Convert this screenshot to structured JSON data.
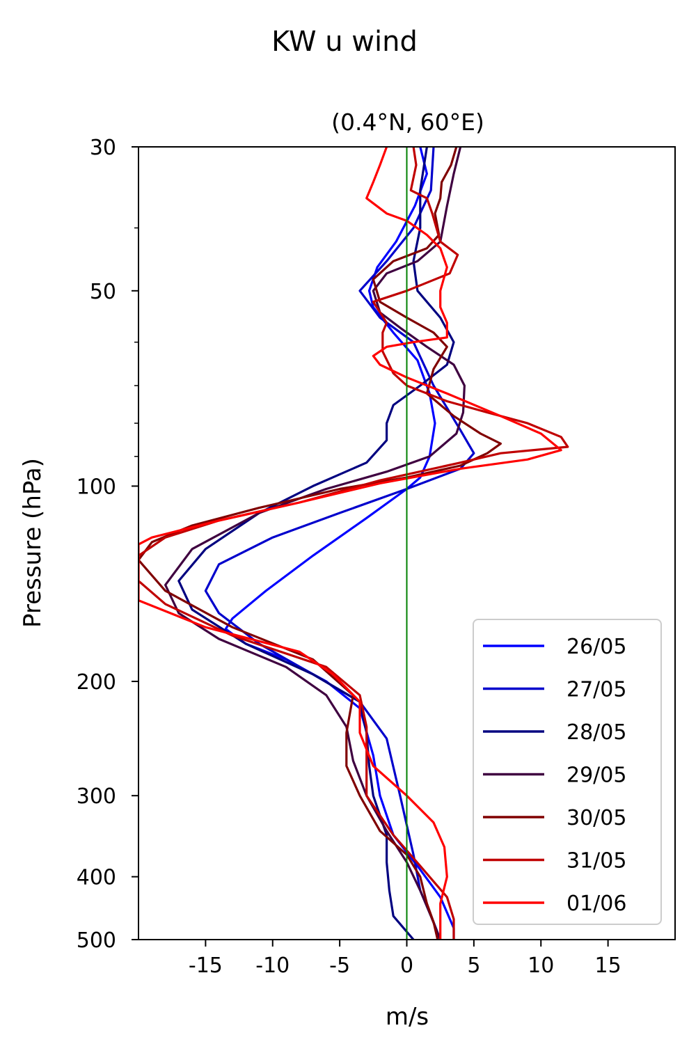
{
  "chart_data": {
    "type": "line",
    "title": "KW u wind",
    "subtitle": "(0.4°N, 60°E)",
    "xlabel": "m/s",
    "ylabel": "Pressure (hPa)",
    "xlim": [
      -20,
      20
    ],
    "ylim": [
      500,
      30
    ],
    "y_scale": "log",
    "grid": false,
    "legend_position": "lower-right",
    "xticks": [
      -15,
      -10,
      -5,
      0,
      5,
      10,
      15
    ],
    "xtick_labels": [
      "-15",
      "-10",
      "-5",
      "0",
      "5",
      "10",
      "15"
    ],
    "yticks": [
      30,
      50,
      100,
      200,
      300,
      400,
      500
    ],
    "ytick_labels": [
      "30",
      "50",
      "100",
      "200",
      "300",
      "400",
      "500"
    ],
    "reference_line": {
      "x": 0,
      "color": "#008000"
    },
    "series": [
      {
        "name": "26/05",
        "color": "#0000ff",
        "points": [
          [
            1.0,
            30
          ],
          [
            1.5,
            33
          ],
          [
            0.6,
            37
          ],
          [
            -0.8,
            42
          ],
          [
            -2.2,
            46
          ],
          [
            -2.8,
            50
          ],
          [
            -2.5,
            53
          ],
          [
            -1.0,
            58
          ],
          [
            0.8,
            64
          ],
          [
            1.7,
            72
          ],
          [
            2.1,
            80
          ],
          [
            1.7,
            90
          ],
          [
            1.0,
            97
          ],
          [
            0,
            101
          ],
          [
            -3,
            112
          ],
          [
            -7,
            128
          ],
          [
            -10.5,
            145
          ],
          [
            -13,
            160
          ],
          [
            -13.5,
            166
          ],
          [
            -12,
            175
          ],
          [
            -9,
            185
          ],
          [
            -6,
            200
          ],
          [
            -3.5,
            220
          ],
          [
            -2.5,
            260
          ],
          [
            -2,
            300
          ],
          [
            -1,
            345
          ],
          [
            1,
            390
          ],
          [
            2.5,
            430
          ],
          [
            3.5,
            480
          ],
          [
            3.5,
            500
          ]
        ]
      },
      {
        "name": "27/05",
        "color": "#0000cc",
        "points": [
          [
            2.0,
            30
          ],
          [
            1.8,
            35
          ],
          [
            0.5,
            40
          ],
          [
            -1.5,
            45
          ],
          [
            -3.5,
            50
          ],
          [
            -2.0,
            55
          ],
          [
            0.5,
            60
          ],
          [
            2.0,
            70
          ],
          [
            4.0,
            82
          ],
          [
            5.0,
            89
          ],
          [
            4.0,
            94
          ],
          [
            0,
            101
          ],
          [
            -5,
            110
          ],
          [
            -10,
            120
          ],
          [
            -14,
            132
          ],
          [
            -15,
            145
          ],
          [
            -14,
            157
          ],
          [
            -11,
            175
          ],
          [
            -7,
            195
          ],
          [
            -3.5,
            215
          ],
          [
            -1.5,
            245
          ],
          [
            -0.5,
            300
          ],
          [
            0.5,
            370
          ],
          [
            1.0,
            420
          ],
          [
            2.0,
            470
          ],
          [
            2.5,
            500
          ]
        ]
      },
      {
        "name": "28/05",
        "color": "#000080",
        "points": [
          [
            1.5,
            30
          ],
          [
            1.0,
            35
          ],
          [
            1.0,
            40
          ],
          [
            0.5,
            45
          ],
          [
            0.8,
            50
          ],
          [
            2.5,
            55
          ],
          [
            3.5,
            60
          ],
          [
            3.0,
            65
          ],
          [
            1.0,
            70
          ],
          [
            -1.0,
            75
          ],
          [
            -1.5,
            80
          ],
          [
            -1.5,
            85
          ],
          [
            -3.0,
            92
          ],
          [
            -7,
            100
          ],
          [
            -11,
            110
          ],
          [
            -15,
            125
          ],
          [
            -17,
            140
          ],
          [
            -16,
            155
          ],
          [
            -12,
            175
          ],
          [
            -7,
            195
          ],
          [
            -3.5,
            215
          ],
          [
            -3,
            240
          ],
          [
            -2.8,
            270
          ],
          [
            -2.5,
            300
          ],
          [
            -1.5,
            345
          ],
          [
            -1.5,
            380
          ],
          [
            -1.3,
            420
          ],
          [
            -1.0,
            460
          ],
          [
            0.5,
            500
          ]
        ]
      },
      {
        "name": "29/05",
        "color": "#3f0040",
        "points": [
          [
            4.0,
            30
          ],
          [
            3.5,
            33
          ],
          [
            3.0,
            37
          ],
          [
            2.5,
            42
          ],
          [
            0.8,
            45
          ],
          [
            -1.5,
            47
          ],
          [
            -2.5,
            50
          ],
          [
            -2.0,
            54
          ],
          [
            -0.5,
            57
          ],
          [
            1.5,
            61
          ],
          [
            3.5,
            65
          ],
          [
            4.3,
            70
          ],
          [
            4.2,
            77
          ],
          [
            3.7,
            83
          ],
          [
            1.7,
            90
          ],
          [
            -1.5,
            95
          ],
          [
            -6,
            101
          ],
          [
            -11,
            110
          ],
          [
            -16,
            125
          ],
          [
            -18,
            142
          ],
          [
            -17,
            157
          ],
          [
            -14,
            172
          ],
          [
            -9,
            190
          ],
          [
            -6,
            210
          ],
          [
            -4.5,
            235
          ],
          [
            -4.0,
            265
          ],
          [
            -3.0,
            300
          ],
          [
            -1.5,
            340
          ],
          [
            0,
            380
          ],
          [
            1.0,
            420
          ],
          [
            1.8,
            460
          ],
          [
            2.5,
            500
          ]
        ]
      },
      {
        "name": "30/05",
        "color": "#800000",
        "points": [
          [
            3.7,
            30
          ],
          [
            3.3,
            32
          ],
          [
            2.6,
            34
          ],
          [
            2.5,
            36
          ],
          [
            2.1,
            38
          ],
          [
            2.4,
            41
          ],
          [
            1.5,
            43
          ],
          [
            -1.0,
            45
          ],
          [
            -2.5,
            48
          ],
          [
            -2.0,
            52
          ],
          [
            0,
            55
          ],
          [
            2.0,
            58
          ],
          [
            3.0,
            61
          ],
          [
            2.0,
            66
          ],
          [
            1.5,
            72
          ],
          [
            3.5,
            78
          ],
          [
            5.5,
            83
          ],
          [
            7,
            86
          ],
          [
            6,
            89
          ],
          [
            4,
            93
          ],
          [
            0,
            97
          ],
          [
            -5,
            101
          ],
          [
            -11,
            108
          ],
          [
            -16,
            115
          ],
          [
            -19,
            122
          ],
          [
            -20,
            130
          ],
          [
            -18,
            145
          ],
          [
            -13,
            165
          ],
          [
            -7,
            185
          ],
          [
            -4.0,
            210
          ],
          [
            -4.5,
            240
          ],
          [
            -4.5,
            270
          ],
          [
            -3.5,
            300
          ],
          [
            -2.0,
            340
          ],
          [
            0,
            370
          ],
          [
            1.0,
            400
          ],
          [
            1.5,
            440
          ],
          [
            2.0,
            470
          ],
          [
            2.3,
            500
          ]
        ]
      },
      {
        "name": "31/05",
        "color": "#c00000",
        "points": [
          [
            0.5,
            30
          ],
          [
            0.7,
            32
          ],
          [
            0.3,
            35
          ],
          [
            1.5,
            36
          ],
          [
            1.9,
            38
          ],
          [
            2.5,
            42
          ],
          [
            3.8,
            44
          ],
          [
            3.2,
            47
          ],
          [
            0,
            50
          ],
          [
            -2.5,
            52
          ],
          [
            -1.5,
            56
          ],
          [
            -1.8,
            58
          ],
          [
            -1.8,
            62
          ],
          [
            -1.0,
            67
          ],
          [
            0,
            70
          ],
          [
            3,
            74
          ],
          [
            6,
            77
          ],
          [
            9,
            80
          ],
          [
            11.5,
            84
          ],
          [
            12,
            87
          ],
          [
            7,
            89
          ],
          [
            4,
            92
          ],
          [
            -2,
            98
          ],
          [
            -8,
            106
          ],
          [
            -14,
            113
          ],
          [
            -18,
            120
          ],
          [
            -20,
            128
          ],
          [
            -20,
            140
          ],
          [
            -18,
            152
          ],
          [
            -13,
            170
          ],
          [
            -6,
            190
          ],
          [
            -3.5,
            210
          ],
          [
            -3.0,
            235
          ],
          [
            -3,
            260
          ],
          [
            -3,
            300
          ],
          [
            -1.0,
            345
          ],
          [
            1,
            385
          ],
          [
            3,
            430
          ],
          [
            3.5,
            465
          ],
          [
            3.5,
            500
          ]
        ]
      },
      {
        "name": "01/06",
        "color": "#ff0000",
        "points": [
          [
            -1.5,
            30
          ],
          [
            -2.0,
            32
          ],
          [
            -2.5,
            34
          ],
          [
            -3.0,
            36
          ],
          [
            -1.5,
            38
          ],
          [
            0,
            39
          ],
          [
            1.5,
            41
          ],
          [
            2.5,
            43
          ],
          [
            3.0,
            46
          ],
          [
            2.5,
            50
          ],
          [
            2.5,
            53
          ],
          [
            3.0,
            56
          ],
          [
            3.0,
            59
          ],
          [
            0.5,
            60
          ],
          [
            -1.5,
            61
          ],
          [
            -2.5,
            63
          ],
          [
            -2.0,
            65
          ],
          [
            0,
            68
          ],
          [
            3,
            72
          ],
          [
            7,
            78
          ],
          [
            10,
            83
          ],
          [
            11.5,
            88
          ],
          [
            9,
            91
          ],
          [
            4,
            94
          ],
          [
            -2,
            99
          ],
          [
            -8,
            106
          ],
          [
            -14,
            113
          ],
          [
            -19,
            120
          ],
          [
            -20,
            123
          ],
          [
            -20,
            150
          ],
          [
            -15,
            165
          ],
          [
            -8,
            180
          ],
          [
            -5.5,
            195
          ],
          [
            -3.5,
            215
          ],
          [
            -3.5,
            240
          ],
          [
            -2.5,
            270
          ],
          [
            0,
            300
          ],
          [
            2,
            330
          ],
          [
            2.8,
            360
          ],
          [
            3.0,
            400
          ],
          [
            2.5,
            440
          ],
          [
            2.5,
            470
          ],
          [
            2.5,
            500
          ]
        ]
      }
    ]
  }
}
